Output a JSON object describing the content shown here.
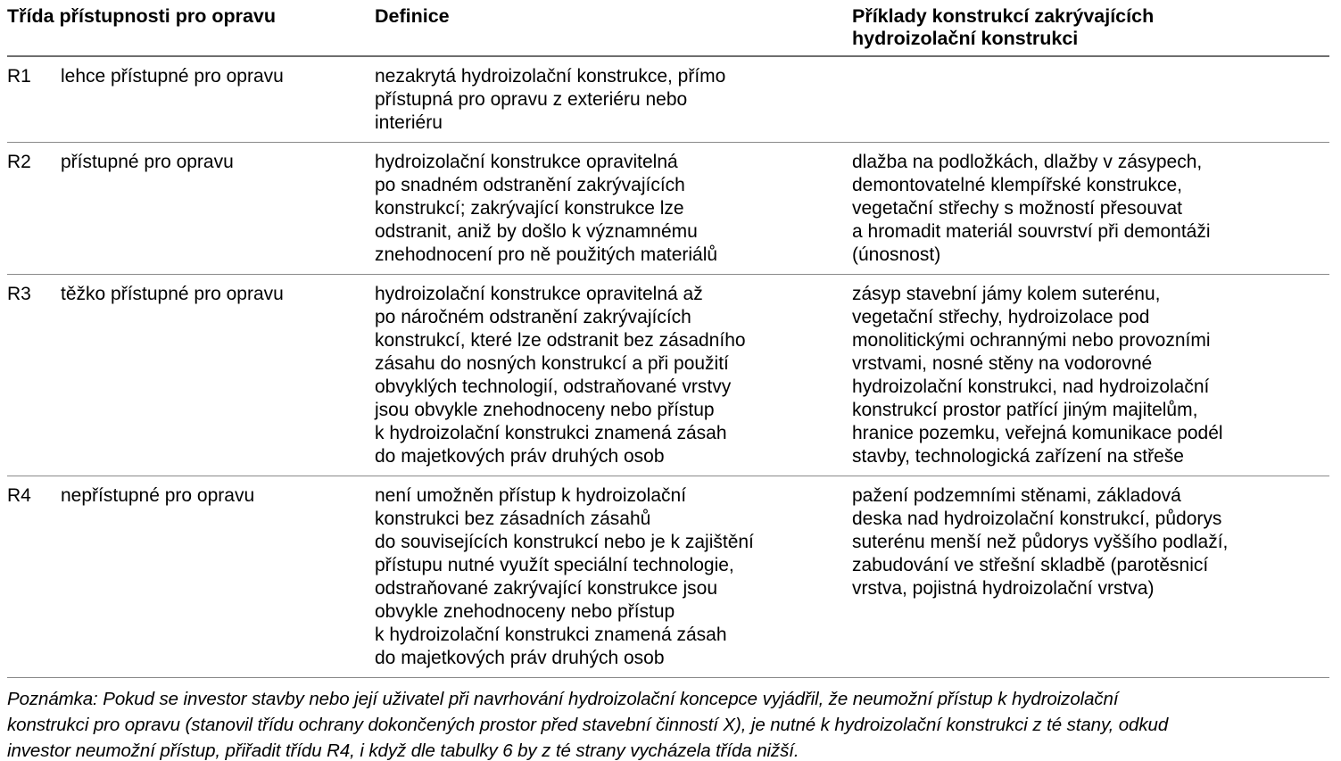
{
  "table": {
    "headers": {
      "class_col": "Třída přístupnosti pro opravu",
      "definition_col": "Definice",
      "examples_col": "Příklady konstrukcí zakrývajících\nhydroizolační konstrukci"
    },
    "rows": [
      {
        "code": "R1",
        "label": "lehce přístupné pro opravu",
        "definition": "nezakrytá hydroizolační konstrukce, přímo\npřístupná pro opravu z exteriéru nebo\ninteriéru",
        "examples": ""
      },
      {
        "code": "R2",
        "label": "přístupné pro opravu",
        "definition": "hydroizolační konstrukce opravitelná\npo snadném odstranění zakrývajících\nkonstrukcí; zakrývající konstrukce lze\nodstranit, aniž by došlo k významnému\nznehodnocení pro ně použitých materiálů",
        "examples": "dlažba na podložkách, dlažby v zásypech,\ndemontovatelné klempířské konstrukce,\nvegetační střechy s možností přesouvat\na hromadit materiál souvrství při demontáži\n(únosnost)"
      },
      {
        "code": "R3",
        "label": "těžko přístupné pro opravu",
        "definition": "hydroizolační konstrukce opravitelná až\npo náročném odstranění zakrývajících\nkonstrukcí, které lze odstranit bez zásadního\nzásahu do nosných konstrukcí a při použití\nobvyklých technologií, odstraňované vrstvy\njsou obvykle znehodnoceny nebo přístup\nk hydroizolační konstrukci znamená zásah\ndo majetkových práv druhých osob",
        "examples": "zásyp stavební jámy kolem suterénu,\nvegetační střechy, hydroizolace pod\nmonolitickými ochrannými nebo provozními\nvrstvami, nosné stěny na vodorovné\nhydroizolační konstrukci, nad hydroizolační\nkonstrukcí prostor patřící jiným majitelům,\nhranice pozemku, veřejná komunikace podél\nstavby, technologická zařízení na střeše"
      },
      {
        "code": "R4",
        "label": "nepřístupné pro opravu",
        "definition": "není umožněn přístup k hydroizolační\nkonstrukci bez zásadních zásahů\ndo souvisejících konstrukcí nebo je k zajištění\npřístupu nutné využít speciální technologie,\nodstraňované zakrývající konstrukce jsou\nobvykle znehodnoceny nebo přístup\nk hydroizolační konstrukci znamená zásah\ndo majetkových práv druhých osob",
        "examples": "pažení podzemními stěnami, základová\ndeska nad hydroizolační konstrukcí, půdorys\nsuterénu menší než půdorys vyššího podlaží,\nzabudování ve střešní skladbě (parotěsnicí\nvrstva, pojistná hydroizolační vrstva)"
      }
    ],
    "note": "Poznámka: Pokud se investor stavby nebo její uživatel při navrhování hydroizolační koncepce vyjádřil, že neumožní přístup k hydroizolační\nkonstrukci pro opravu (stanovil třídu ochrany dokončených prostor před stavební činností X), je nutné k hydroizolační konstrukci z té stany, odkud\ninvestor neumožní přístup, přiřadit třídu R4, i když dle tabulky 6 by z té strany vycházela třída nižší."
  }
}
